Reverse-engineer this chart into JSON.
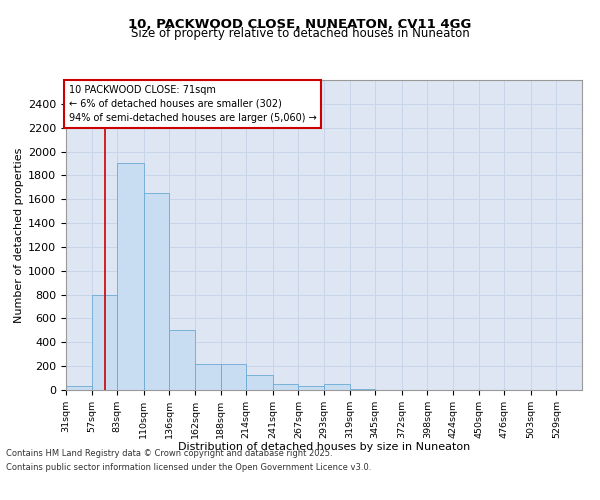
{
  "title_line1": "10, PACKWOOD CLOSE, NUNEATON, CV11 4GG",
  "title_line2": "Size of property relative to detached houses in Nuneaton",
  "xlabel": "Distribution of detached houses by size in Nuneaton",
  "ylabel": "Number of detached properties",
  "footer_line1": "Contains HM Land Registry data © Crown copyright and database right 2025.",
  "footer_line2": "Contains public sector information licensed under the Open Government Licence v3.0.",
  "annotation_line1": "10 PACKWOOD CLOSE: 71sqm",
  "annotation_line2": "← 6% of detached houses are smaller (302)",
  "annotation_line3": "94% of semi-detached houses are larger (5,060) →",
  "bar_color": "#c9ddf2",
  "bar_edge_color": "#6aaad4",
  "red_line_x": 71,
  "ylim": [
    0,
    2600
  ],
  "yticks": [
    0,
    200,
    400,
    600,
    800,
    1000,
    1200,
    1400,
    1600,
    1800,
    2000,
    2200,
    2400
  ],
  "bin_edges": [
    31,
    57,
    83,
    110,
    136,
    162,
    188,
    214,
    241,
    267,
    293,
    319,
    345,
    372,
    398,
    424,
    450,
    476,
    503,
    529,
    555
  ],
  "bar_heights": [
    30,
    800,
    1900,
    1650,
    500,
    220,
    220,
    125,
    50,
    30,
    50,
    5,
    0,
    0,
    0,
    0,
    0,
    0,
    0,
    0
  ],
  "grid_color": "#c8d4e8",
  "background_color": "#dde6f2",
  "fig_background": "#ffffff",
  "annotation_box_facecolor": "#ffffff",
  "annotation_box_edgecolor": "#cc0000",
  "red_line_color": "#cc0000",
  "title1_fontsize": 9.5,
  "title2_fontsize": 8.5,
  "ylabel_fontsize": 8,
  "xlabel_fontsize": 8,
  "tick_fontsize": 8,
  "xtick_fontsize": 6.8,
  "ann_fontsize": 7,
  "footer_fontsize": 6
}
